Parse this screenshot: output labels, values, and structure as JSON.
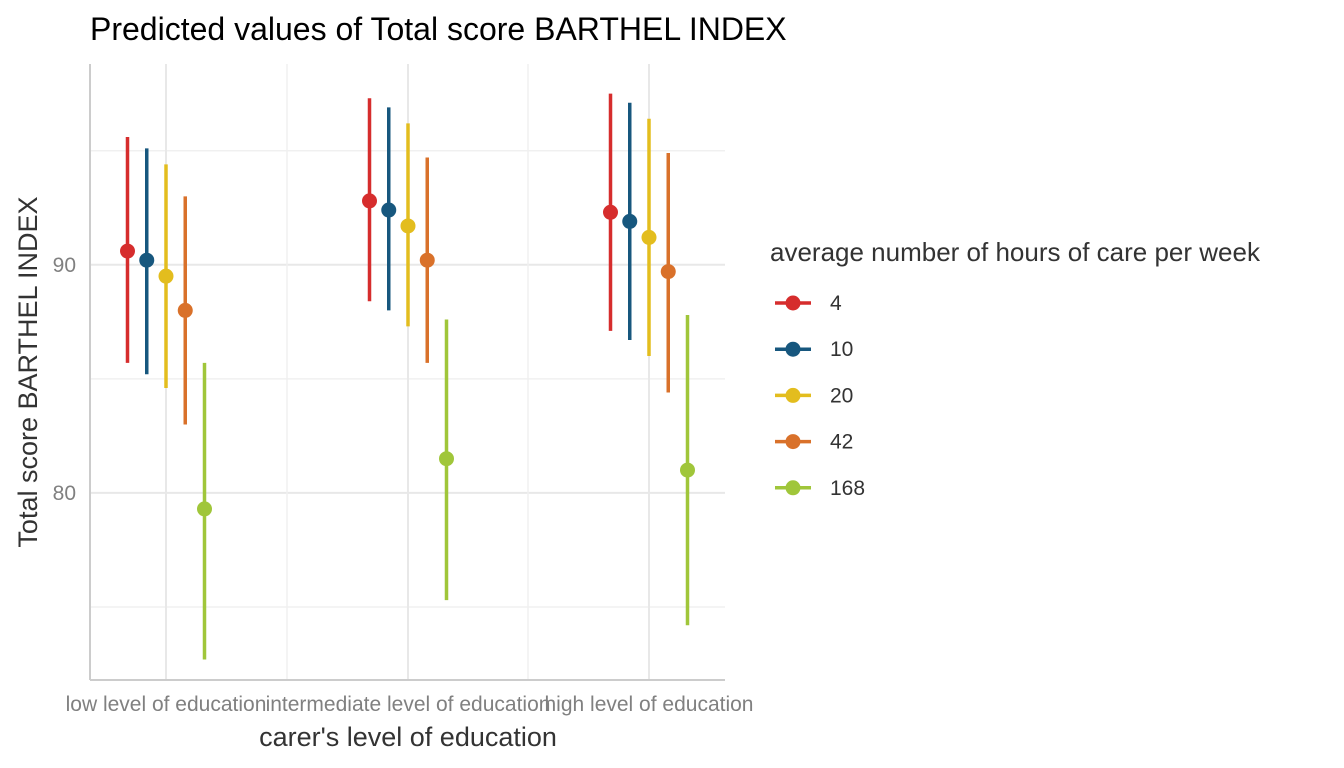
{
  "chart_data": {
    "type": "scatter",
    "title": "Predicted values of Total score BARTHEL INDEX",
    "xlabel": "carer's level of education",
    "ylabel": "Total score BARTHEL INDEX",
    "categories": [
      "low level of education",
      "intermediate level of education",
      "high level of education"
    ],
    "y_ticks": [
      80,
      90
    ],
    "ylim": [
      71.8,
      98.8
    ],
    "grid": true,
    "legend": {
      "title": "average number of hours of care per week",
      "position": "right"
    },
    "series": [
      {
        "name": "4",
        "color": "#d62d2d",
        "values": [
          90.6,
          92.8,
          92.3
        ],
        "lower": [
          85.7,
          88.4,
          87.1
        ],
        "upper": [
          95.6,
          97.3,
          97.5
        ]
      },
      {
        "name": "10",
        "color": "#17577e",
        "values": [
          90.2,
          92.4,
          91.9
        ],
        "lower": [
          85.2,
          88.0,
          86.7
        ],
        "upper": [
          95.1,
          96.9,
          97.1
        ]
      },
      {
        "name": "20",
        "color": "#e3bd1e",
        "values": [
          89.5,
          91.7,
          91.2
        ],
        "lower": [
          84.6,
          87.3,
          86.0
        ],
        "upper": [
          94.4,
          96.2,
          96.4
        ]
      },
      {
        "name": "42",
        "color": "#d9712a",
        "values": [
          88.0,
          90.2,
          89.7
        ],
        "lower": [
          83.0,
          85.7,
          84.4
        ],
        "upper": [
          93.0,
          94.7,
          94.9
        ]
      },
      {
        "name": "168",
        "color": "#a0c63a",
        "values": [
          79.3,
          81.5,
          81.0
        ],
        "lower": [
          72.7,
          75.3,
          74.2
        ],
        "upper": [
          85.7,
          87.6,
          87.8
        ]
      }
    ]
  }
}
